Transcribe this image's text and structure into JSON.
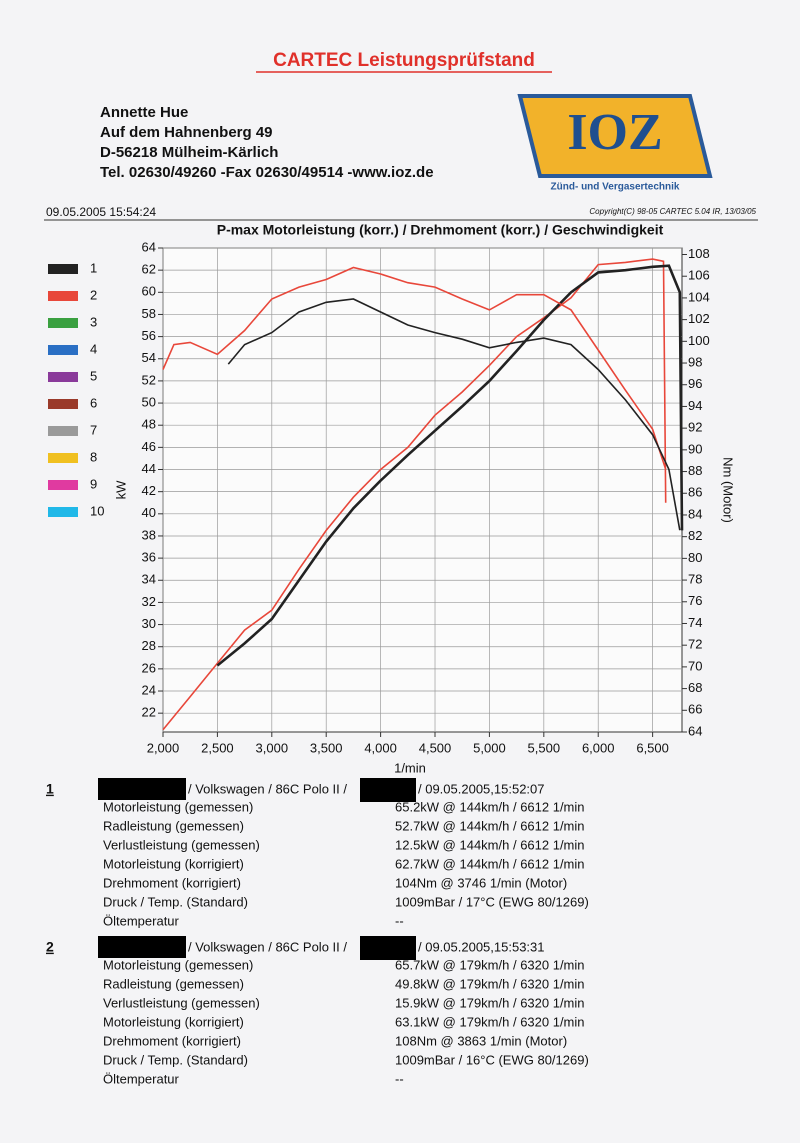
{
  "header": {
    "title": "CARTEC Leistungsprüfstand",
    "address": [
      "Annette Hue",
      "Auf dem Hahnenberg 49",
      "D-56218 Mülheim-Kärlich",
      "Tel. 02630/49260 -Fax 02630/49514 -www.ioz.de"
    ],
    "logo": "IOZ",
    "logo_subtitle": "Zünd- und Vergasertechnik",
    "timestamp": "09.05.2005 15:54:24",
    "copyright": "Copyright(C) 98-05 CARTEC 5.04 IR, 13/03/05"
  },
  "chart_data": {
    "type": "line",
    "title": "P-max Motorleistung (korr.) / Drehmoment (korr.) / Geschwindigkeit",
    "x_label": "1/min",
    "y_label": "kW",
    "y2_label": "Nm (Motor)",
    "xlim": [
      2000,
      6770
    ],
    "ylim": [
      20.3,
      64
    ],
    "y2lim": [
      64,
      108.6
    ],
    "grid": true,
    "xticks": [
      {
        "value": 2000,
        "label": "2,000"
      },
      {
        "value": 2500,
        "label": "2,500"
      },
      {
        "value": 3000,
        "label": "3,000"
      },
      {
        "value": 3500,
        "label": "3,500"
      },
      {
        "value": 4000,
        "label": "4,000"
      },
      {
        "value": 4500,
        "label": "4,500"
      },
      {
        "value": 5000,
        "label": "5,000"
      },
      {
        "value": 5500,
        "label": "5,500"
      },
      {
        "value": 6000,
        "label": "6,000"
      },
      {
        "value": 6500,
        "label": "6,500"
      }
    ],
    "yticks": [
      22,
      24,
      26,
      28,
      30,
      32,
      34,
      36,
      38,
      40,
      42,
      44,
      46,
      48,
      50,
      52,
      54,
      56,
      58,
      60,
      62,
      64
    ],
    "y2ticks": [
      64,
      66,
      68,
      70,
      72,
      74,
      76,
      78,
      80,
      82,
      84,
      86,
      88,
      90,
      92,
      94,
      96,
      98,
      100,
      102,
      104,
      106,
      108
    ],
    "legend": [
      {
        "name": "1",
        "color": "#222222"
      },
      {
        "name": "2",
        "color": "#e8473a"
      },
      {
        "name": "3",
        "color": "#3aa040"
      },
      {
        "name": "4",
        "color": "#2a6fc4"
      },
      {
        "name": "5",
        "color": "#8a3a9a"
      },
      {
        "name": "6",
        "color": "#9a3a2a"
      },
      {
        "name": "7",
        "color": "#9a9a9a"
      },
      {
        "name": "8",
        "color": "#f0c020"
      },
      {
        "name": "9",
        "color": "#e03aa0"
      },
      {
        "name": "10",
        "color": "#20b8e8"
      }
    ],
    "series": [
      {
        "color": "#e8473a",
        "axis": "y",
        "x": [
          2000,
          2250,
          2500,
          2750,
          3000,
          3250,
          3500,
          3750,
          4000,
          4250,
          4500,
          4750,
          5000,
          5250,
          5500,
          5750,
          6000,
          6250,
          6500,
          6600,
          6620
        ],
        "values": [
          20.5,
          23.5,
          26.5,
          29.5,
          31.3,
          35,
          38.5,
          41.5,
          44,
          46,
          48.9,
          51,
          53.4,
          56,
          57.7,
          59.5,
          62.5,
          62.7,
          63,
          62.8,
          41
        ]
      },
      {
        "color": "#222222",
        "axis": "y",
        "x": [
          2500,
          2750,
          3000,
          3250,
          3500,
          3750,
          4000,
          4250,
          4500,
          4750,
          5000,
          5250,
          5500,
          5750,
          6000,
          6250,
          6500,
          6650,
          6750,
          6770
        ],
        "values": [
          26.3,
          28.3,
          30.5,
          34,
          37.5,
          40.5,
          43,
          45.3,
          47.5,
          49.7,
          52,
          54.7,
          57.5,
          60,
          61.8,
          62,
          62.3,
          62.4,
          60,
          38.5
        ]
      },
      {
        "color": "#e8473a",
        "axis": "y2",
        "x": [
          2000,
          2100,
          2250,
          2500,
          2750,
          3000,
          3250,
          3500,
          3750,
          4000,
          4250,
          4500,
          4750,
          5000,
          5250,
          5500,
          5750,
          6000,
          6250,
          6500,
          6620
        ],
        "values": [
          97.4,
          99.7,
          99.9,
          98.8,
          101,
          103.9,
          105,
          105.7,
          106.8,
          106.2,
          105.4,
          105,
          103.9,
          102.9,
          104.3,
          104.3,
          102.9,
          99.2,
          95.5,
          91.9,
          88.2
        ]
      },
      {
        "color": "#222222",
        "axis": "y2",
        "x": [
          2600,
          2750,
          3000,
          3250,
          3500,
          3750,
          4000,
          4250,
          4500,
          4750,
          5000,
          5250,
          5500,
          5750,
          6000,
          6250,
          6500,
          6650,
          6750
        ],
        "values": [
          97.9,
          99.7,
          100.8,
          102.7,
          103.6,
          103.9,
          102.7,
          101.5,
          100.8,
          100.2,
          99.4,
          99.9,
          100.3,
          99.7,
          97.4,
          94.6,
          91.4,
          88.2,
          82.6
        ]
      }
    ]
  },
  "runs": [
    {
      "number": "1",
      "vehicle": "/ Volkswagen / 86C Polo II /",
      "date": "/ 09.05.2005,15:52:07",
      "rows": [
        [
          "Motorleistung (gemessen)",
          "65.2kW @ 144km/h / 6612 1/min"
        ],
        [
          "Radleistung (gemessen)",
          "52.7kW @ 144km/h / 6612 1/min"
        ],
        [
          "Verlustleistung (gemessen)",
          "12.5kW @ 144km/h / 6612 1/min"
        ],
        [
          "Motorleistung (korrigiert)",
          "62.7kW @ 144km/h / 6612 1/min"
        ],
        [
          "Drehmoment (korrigiert)",
          "104Nm @ 3746 1/min (Motor)"
        ],
        [
          "Druck / Temp. (Standard)",
          "1009mBar / 17°C   (EWG 80/1269)"
        ],
        [
          "Öltemperatur",
          "--"
        ]
      ]
    },
    {
      "number": "2",
      "vehicle": "/ Volkswagen / 86C Polo II /",
      "date": "/ 09.05.2005,15:53:31",
      "rows": [
        [
          "Motorleistung (gemessen)",
          "65.7kW @ 179km/h / 6320 1/min"
        ],
        [
          "Radleistung (gemessen)",
          "49.8kW @ 179km/h / 6320 1/min"
        ],
        [
          "Verlustleistung (gemessen)",
          "15.9kW @ 179km/h / 6320 1/min"
        ],
        [
          "Motorleistung (korrigiert)",
          "63.1kW @ 179km/h / 6320 1/min"
        ],
        [
          "Drehmoment (korrigiert)",
          "108Nm @ 3863 1/min (Motor)"
        ],
        [
          "Druck / Temp. (Standard)",
          "1009mBar / 16°C   (EWG 80/1269)"
        ],
        [
          "Öltemperatur",
          "--"
        ]
      ]
    }
  ]
}
